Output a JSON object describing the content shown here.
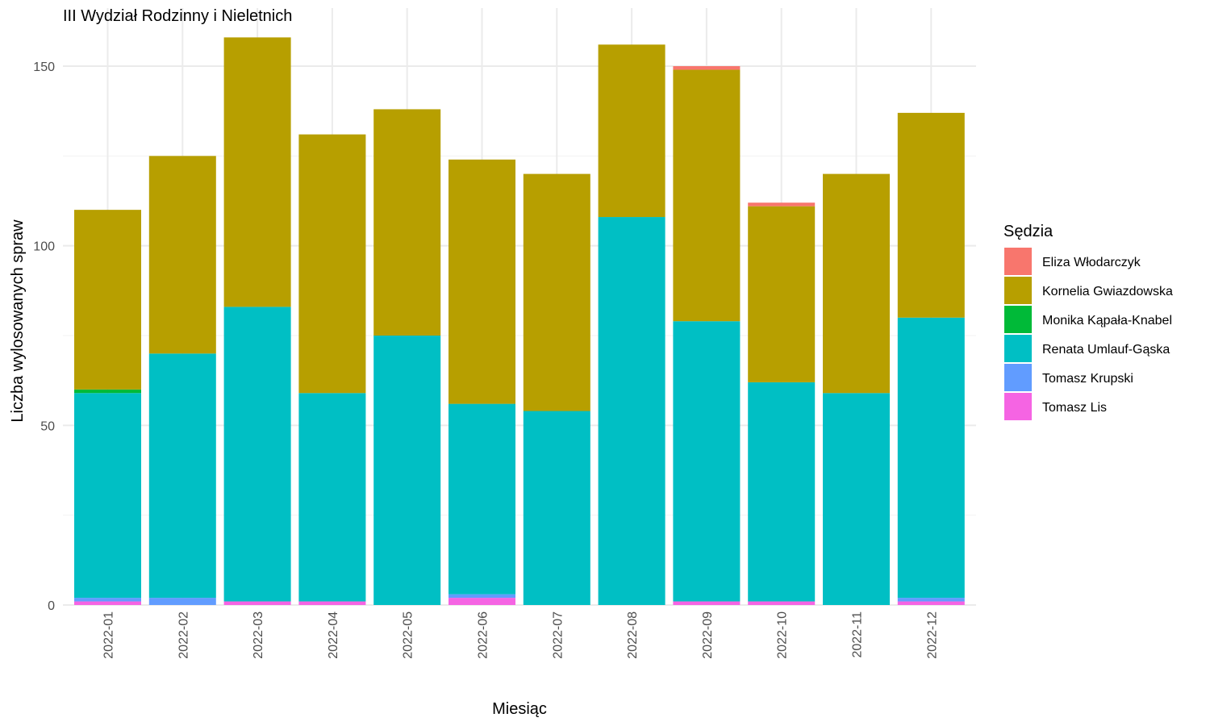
{
  "chart_data": {
    "type": "bar",
    "stacked": true,
    "title": "III Wydział Rodzinny i Nieletnich",
    "xlabel": "Miesiąc",
    "ylabel": "Liczba wylosowanych spraw",
    "ylim": [
      0,
      160
    ],
    "yticks": [
      0,
      50,
      100,
      150
    ],
    "grid": true,
    "legend_title": "Sędzia",
    "legend_position": "right",
    "categories": [
      "2022-01",
      "2022-02",
      "2022-03",
      "2022-04",
      "2022-05",
      "2022-06",
      "2022-07",
      "2022-08",
      "2022-09",
      "2022-10",
      "2022-11",
      "2022-12"
    ],
    "series": [
      {
        "name": "Tomasz Lis",
        "color": "#F564E3",
        "values": [
          1,
          0,
          1,
          1,
          0,
          2,
          0,
          0,
          1,
          1,
          0,
          1
        ]
      },
      {
        "name": "Tomasz Krupski",
        "color": "#619CFF",
        "values": [
          1,
          2,
          0,
          0,
          0,
          1,
          0,
          0,
          0,
          0,
          0,
          1
        ]
      },
      {
        "name": "Renata Umlauf-Gąska",
        "color": "#00BFC4",
        "values": [
          57,
          68,
          82,
          58,
          75,
          53,
          54,
          108,
          78,
          61,
          59,
          78
        ]
      },
      {
        "name": "Monika Kąpała-Knabel",
        "color": "#00BA38",
        "values": [
          1,
          0,
          0,
          0,
          0,
          0,
          0,
          0,
          0,
          0,
          0,
          0
        ]
      },
      {
        "name": "Kornelia Gwiazdowska",
        "color": "#B79F00",
        "values": [
          50,
          55,
          75,
          72,
          63,
          68,
          66,
          48,
          70,
          49,
          61,
          57
        ]
      },
      {
        "name": "Eliza Włodarczyk",
        "color": "#F8766D",
        "values": [
          0,
          0,
          0,
          0,
          0,
          0,
          0,
          0,
          1,
          1,
          0,
          0
        ]
      }
    ],
    "legend_order": [
      "Eliza Włodarczyk",
      "Kornelia Gwiazdowska",
      "Monika Kąpała-Knabel",
      "Renata Umlauf-Gąska",
      "Tomasz Krupski",
      "Tomasz Lis"
    ]
  }
}
